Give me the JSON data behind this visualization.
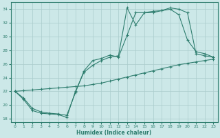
{
  "xlabel": "Humidex (Indice chaleur)",
  "bg_color": "#cce8e8",
  "line_color": "#2e7d6e",
  "grid_color": "#aacccc",
  "xlim": [
    -0.5,
    23.5
  ],
  "ylim": [
    17.5,
    35
  ],
  "yticks": [
    18,
    20,
    22,
    24,
    26,
    28,
    30,
    32,
    34
  ],
  "xticks": [
    0,
    1,
    2,
    3,
    4,
    5,
    6,
    7,
    8,
    9,
    10,
    11,
    12,
    13,
    14,
    15,
    16,
    17,
    18,
    19,
    20,
    21,
    22,
    23
  ],
  "line1_x": [
    0,
    1,
    2,
    3,
    4,
    5,
    6,
    7,
    8,
    9,
    10,
    11,
    12,
    13,
    14,
    15,
    16,
    17,
    18,
    19,
    20,
    21,
    22,
    23
  ],
  "line1_y": [
    22.0,
    22.1,
    22.2,
    22.3,
    22.4,
    22.5,
    22.6,
    22.7,
    22.8,
    23.0,
    23.2,
    23.5,
    23.8,
    24.1,
    24.4,
    24.7,
    25.0,
    25.3,
    25.6,
    25.9,
    26.1,
    26.3,
    26.5,
    26.7
  ],
  "line2_x": [
    0,
    1,
    2,
    3,
    4,
    5,
    6,
    7,
    8,
    9,
    10,
    11,
    12,
    13,
    14,
    15,
    16,
    17,
    18,
    19,
    20,
    21,
    22,
    23
  ],
  "line2_y": [
    22.0,
    20.8,
    19.2,
    18.8,
    18.7,
    18.6,
    18.2,
    22.0,
    24.8,
    25.8,
    26.5,
    27.0,
    27.2,
    34.2,
    31.7,
    33.5,
    33.5,
    33.8,
    34.0,
    33.2,
    29.5,
    27.8,
    27.5,
    27.0
  ],
  "line3_x": [
    0,
    1,
    2,
    3,
    4,
    5,
    6,
    7,
    8,
    9,
    10,
    11,
    12,
    13,
    14,
    15,
    16,
    17,
    18,
    19,
    20,
    21,
    22,
    23
  ],
  "line3_y": [
    22.0,
    21.0,
    19.5,
    19.0,
    18.8,
    18.7,
    18.5,
    21.8,
    25.0,
    26.5,
    26.8,
    27.3,
    27.0,
    30.2,
    33.5,
    33.5,
    33.7,
    33.8,
    34.2,
    34.0,
    33.5,
    27.5,
    27.2,
    27.0
  ]
}
